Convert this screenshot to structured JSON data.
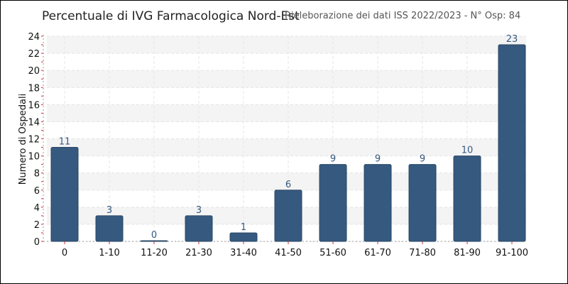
{
  "header": {
    "title": "Percentuale di IVG Farmacologica Nord-Est",
    "subtitle": "Rieleborazione dei dati ISS 2022/2023 - N° Osp: 84"
  },
  "colors": {
    "bar": "#36597f",
    "bar_stroke": "#2a4766",
    "band": "#f4f4f4",
    "value_label": "#36597f",
    "tick_accent": "#cc3333"
  },
  "chart_data": {
    "type": "bar",
    "title": "Percentuale di IVG Farmacologica Nord-Est",
    "subtitle": "Rieleborazione dei dati ISS 2022/2023 - N° Osp: 84",
    "xlabel": "",
    "ylabel": "Numero di Ospedali",
    "categories": [
      "0",
      "1-10",
      "11-20",
      "21-30",
      "31-40",
      "41-50",
      "51-60",
      "61-70",
      "71-80",
      "81-90",
      "91-100"
    ],
    "values": [
      11,
      3,
      0,
      3,
      1,
      6,
      9,
      9,
      9,
      10,
      23
    ],
    "value_labels": [
      "11",
      "3",
      "0",
      "3",
      "1",
      "6",
      "9",
      "9",
      "9",
      "10",
      "23"
    ],
    "ylim": [
      0,
      24
    ],
    "yticks": [
      "0",
      "2",
      "4",
      "6",
      "8",
      "10",
      "12",
      "14",
      "16",
      "18",
      "20",
      "22",
      "24"
    ],
    "grid": true,
    "legend": "none"
  }
}
